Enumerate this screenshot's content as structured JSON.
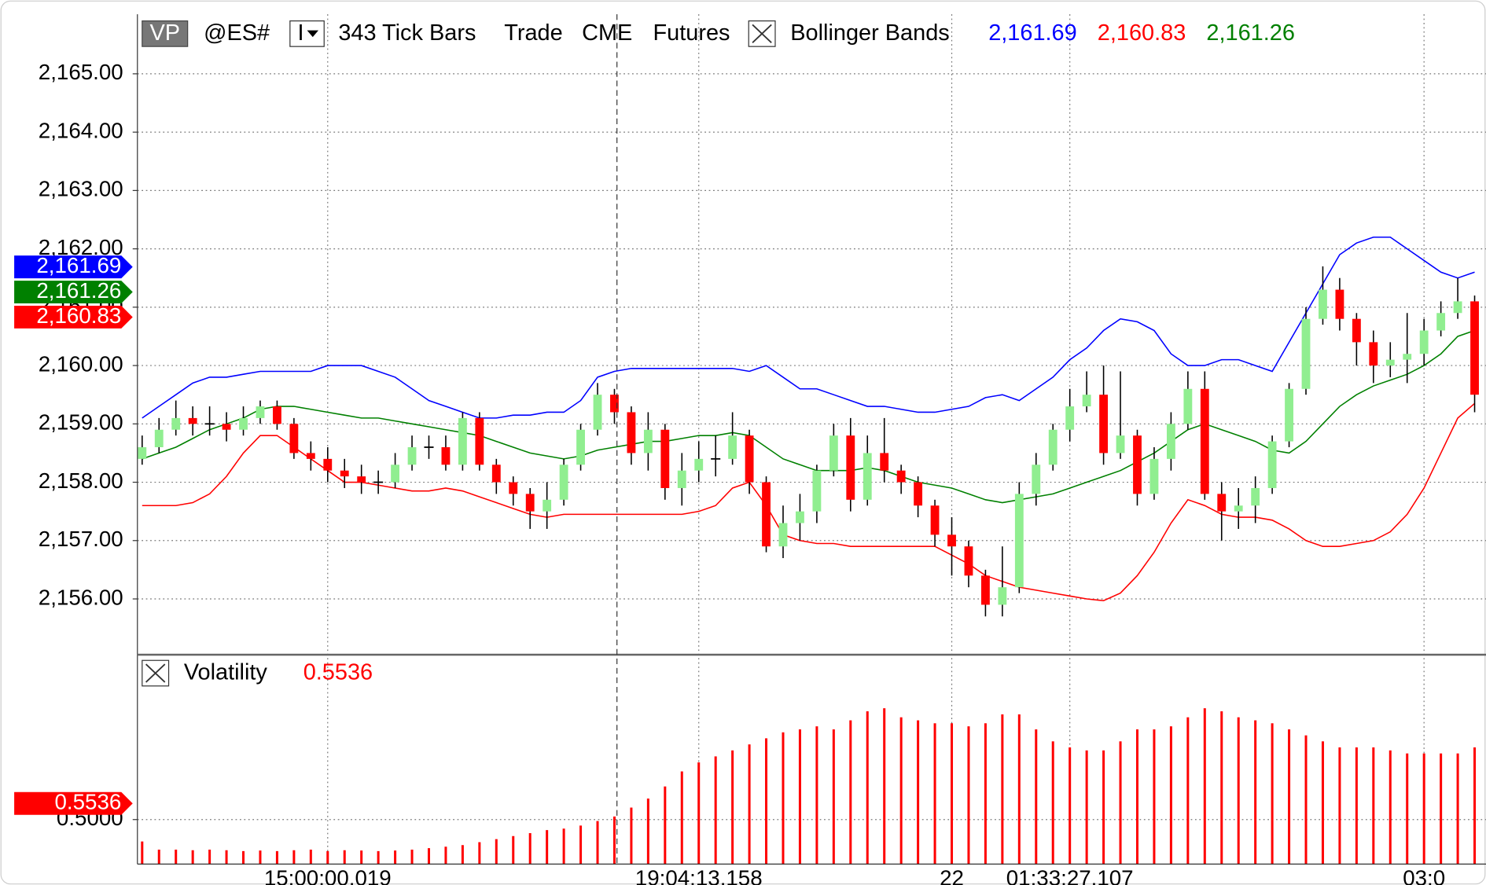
{
  "chart_data": [
    {
      "type": "candlestick",
      "chart_button": "VP",
      "symbol": "@ES#",
      "dropdown": "I",
      "interval": "343 Tick Bars",
      "session": "Trade",
      "exchange": "CME",
      "market": "Futures",
      "indicator": "Bollinger Bands",
      "categories": [
        null,
        null,
        null,
        null,
        null,
        null,
        null,
        null,
        null,
        null,
        null,
        "15:00:00.019",
        null,
        null,
        null,
        null,
        null,
        null,
        null,
        null,
        null,
        null,
        null,
        null,
        null,
        null,
        null,
        null,
        null,
        null,
        null,
        null,
        null,
        "19:04:13.158",
        null,
        null,
        null,
        null,
        null,
        null,
        null,
        null,
        null,
        null,
        null,
        null,
        null,
        null,
        "22",
        null,
        null,
        null,
        null,
        null,
        null,
        "01:33:27.107",
        null,
        null,
        null,
        null,
        null,
        null,
        null,
        null,
        null,
        null,
        null,
        null,
        null,
        null,
        null,
        null,
        null,
        null,
        null,
        null,
        "03:0",
        null,
        null,
        null
      ],
      "open": [
        2158.4,
        2158.6,
        2158.9,
        2159.1,
        2159.0,
        2159.0,
        2158.9,
        2159.1,
        2159.3,
        2159.0,
        2158.5,
        2158.4,
        2158.2,
        2158.1,
        2158.0,
        2158.0,
        2158.3,
        2158.6,
        2158.6,
        2158.3,
        2159.1,
        2158.3,
        2158.0,
        2157.8,
        2157.5,
        2157.7,
        2158.3,
        2158.9,
        2159.5,
        2159.2,
        2158.5,
        2158.9,
        2157.9,
        2158.2,
        2158.4,
        2158.4,
        2158.8,
        2158.0,
        2156.9,
        2157.3,
        2157.5,
        2158.2,
        2158.8,
        2157.7,
        2158.5,
        2158.2,
        2158.0,
        2157.6,
        2157.1,
        2156.9,
        2156.4,
        2155.9,
        2156.2,
        2157.8,
        2158.3,
        2158.9,
        2159.3,
        2159.5,
        2158.5,
        2158.8,
        2157.8,
        2158.4,
        2159.0,
        2159.6,
        2157.8,
        2157.5,
        2157.6,
        2157.9,
        2158.7,
        2159.6,
        2160.8,
        2161.3,
        2160.8,
        2160.4,
        2160.0,
        2160.1,
        2160.2,
        2160.6,
        2160.9,
        2161.1
      ],
      "high": [
        2158.8,
        2159.1,
        2159.4,
        2159.3,
        2159.3,
        2159.2,
        2159.3,
        2159.4,
        2159.4,
        2159.1,
        2158.7,
        2158.6,
        2158.4,
        2158.3,
        2158.2,
        2158.5,
        2158.8,
        2158.8,
        2158.8,
        2159.2,
        2159.2,
        2158.4,
        2158.1,
        2157.9,
        2158.0,
        2158.4,
        2159.0,
        2159.7,
        2159.6,
        2159.3,
        2159.2,
        2159.0,
        2158.5,
        2158.7,
        2158.8,
        2159.2,
        2158.9,
        2158.1,
        2157.6,
        2157.8,
        2158.3,
        2159.0,
        2159.1,
        2158.8,
        2159.1,
        2158.3,
        2158.1,
        2157.7,
        2157.4,
        2157.0,
        2156.5,
        2156.9,
        2158.0,
        2158.5,
        2159.0,
        2159.6,
        2159.9,
        2160.0,
        2159.9,
        2158.9,
        2158.6,
        2159.2,
        2159.9,
        2159.9,
        2158.0,
        2157.9,
        2158.1,
        2158.8,
        2159.7,
        2161.0,
        2161.7,
        2161.5,
        2160.9,
        2160.6,
        2160.4,
        2160.9,
        2160.8,
        2161.1,
        2161.5,
        2161.2
      ],
      "low": [
        2158.3,
        2158.5,
        2158.8,
        2158.8,
        2158.8,
        2158.7,
        2158.8,
        2159.0,
        2158.9,
        2158.4,
        2158.2,
        2158.0,
        2157.9,
        2157.8,
        2157.8,
        2157.9,
        2158.2,
        2158.4,
        2158.2,
        2158.2,
        2158.2,
        2157.8,
        2157.6,
        2157.2,
        2157.2,
        2157.6,
        2158.2,
        2158.8,
        2159.0,
        2158.3,
        2158.2,
        2157.7,
        2157.6,
        2158.0,
        2158.1,
        2158.3,
        2157.8,
        2156.8,
        2156.7,
        2157.0,
        2157.3,
        2158.1,
        2157.5,
        2157.6,
        2158.0,
        2157.8,
        2157.4,
        2156.9,
        2156.4,
        2156.2,
        2155.7,
        2155.7,
        2156.1,
        2157.6,
        2158.2,
        2158.7,
        2159.2,
        2158.3,
        2158.4,
        2157.6,
        2157.7,
        2158.2,
        2158.9,
        2157.7,
        2157.0,
        2157.2,
        2157.3,
        2157.8,
        2158.6,
        2159.5,
        2160.7,
        2160.6,
        2160.0,
        2159.7,
        2159.8,
        2159.7,
        2160.0,
        2160.5,
        2160.8,
        2159.2
      ],
      "close": [
        2158.6,
        2158.9,
        2159.1,
        2159.0,
        2159.0,
        2158.9,
        2159.1,
        2159.3,
        2159.0,
        2158.5,
        2158.4,
        2158.2,
        2158.1,
        2158.0,
        2158.0,
        2158.3,
        2158.6,
        2158.6,
        2158.3,
        2159.1,
        2158.3,
        2158.0,
        2157.8,
        2157.5,
        2157.7,
        2158.3,
        2158.9,
        2159.5,
        2159.2,
        2158.5,
        2158.9,
        2157.9,
        2158.2,
        2158.4,
        2158.4,
        2158.8,
        2158.0,
        2156.9,
        2157.3,
        2157.5,
        2158.2,
        2158.8,
        2157.7,
        2158.5,
        2158.2,
        2158.0,
        2157.6,
        2157.1,
        2156.9,
        2156.4,
        2155.9,
        2156.2,
        2157.8,
        2158.3,
        2158.9,
        2159.3,
        2159.5,
        2158.5,
        2158.8,
        2157.8,
        2158.4,
        2159.0,
        2159.6,
        2157.8,
        2157.5,
        2157.6,
        2157.9,
        2158.7,
        2159.6,
        2160.8,
        2161.3,
        2160.8,
        2160.4,
        2160.0,
        2160.1,
        2160.2,
        2160.6,
        2160.9,
        2161.1,
        2159.5
      ],
      "up_color": "#90ee90",
      "down_color": "#ff0000",
      "wick_color": "#000000",
      "series": [
        {
          "color": "#0000ff",
          "values": [
            2159.1,
            2159.3,
            2159.5,
            2159.7,
            2159.8,
            2159.8,
            2159.85,
            2159.9,
            2159.9,
            2159.9,
            2159.9,
            2160.0,
            2160.0,
            2160.0,
            2159.9,
            2159.8,
            2159.6,
            2159.4,
            2159.3,
            2159.2,
            2159.1,
            2159.1,
            2159.15,
            2159.15,
            2159.2,
            2159.2,
            2159.4,
            2159.8,
            2159.9,
            2159.95,
            2159.95,
            2159.95,
            2159.95,
            2159.95,
            2159.95,
            2159.95,
            2159.9,
            2160.0,
            2159.8,
            2159.6,
            2159.6,
            2159.5,
            2159.4,
            2159.3,
            2159.3,
            2159.25,
            2159.2,
            2159.2,
            2159.25,
            2159.3,
            2159.45,
            2159.5,
            2159.4,
            2159.6,
            2159.8,
            2160.1,
            2160.3,
            2160.6,
            2160.8,
            2160.75,
            2160.6,
            2160.2,
            2160.0,
            2160.0,
            2160.1,
            2160.1,
            2160.0,
            2159.9,
            2160.4,
            2160.9,
            2161.4,
            2161.9,
            2162.1,
            2162.2,
            2162.2,
            2162.0,
            2161.8,
            2161.6,
            2161.5,
            2161.6
          ]
        },
        {
          "color": "#008000",
          "values": [
            2158.4,
            2158.5,
            2158.6,
            2158.75,
            2158.9,
            2159.0,
            2159.1,
            2159.25,
            2159.3,
            2159.3,
            2159.25,
            2159.2,
            2159.15,
            2159.1,
            2159.1,
            2159.05,
            2159.0,
            2158.95,
            2158.9,
            2158.85,
            2158.8,
            2158.7,
            2158.6,
            2158.5,
            2158.45,
            2158.4,
            2158.45,
            2158.55,
            2158.6,
            2158.65,
            2158.7,
            2158.7,
            2158.75,
            2158.8,
            2158.8,
            2158.85,
            2158.8,
            2158.6,
            2158.4,
            2158.3,
            2158.2,
            2158.2,
            2158.2,
            2158.25,
            2158.2,
            2158.1,
            2158.0,
            2157.95,
            2157.9,
            2157.8,
            2157.7,
            2157.65,
            2157.7,
            2157.75,
            2157.8,
            2157.9,
            2158.0,
            2158.1,
            2158.2,
            2158.35,
            2158.5,
            2158.7,
            2158.9,
            2159.0,
            2158.9,
            2158.8,
            2158.7,
            2158.55,
            2158.5,
            2158.7,
            2159.0,
            2159.3,
            2159.5,
            2159.65,
            2159.75,
            2159.85,
            2160.0,
            2160.2,
            2160.5,
            2160.6
          ]
        },
        {
          "color": "#ff0000",
          "values": [
            2157.6,
            2157.6,
            2157.6,
            2157.65,
            2157.8,
            2158.1,
            2158.5,
            2158.8,
            2158.8,
            2158.6,
            2158.4,
            2158.2,
            2158.0,
            2158.0,
            2157.95,
            2157.9,
            2157.85,
            2157.85,
            2157.9,
            2157.85,
            2157.75,
            2157.65,
            2157.55,
            2157.45,
            2157.4,
            2157.45,
            2157.45,
            2157.45,
            2157.45,
            2157.45,
            2157.45,
            2157.45,
            2157.45,
            2157.5,
            2157.6,
            2157.9,
            2158.0,
            2157.6,
            2157.1,
            2157.0,
            2156.95,
            2156.95,
            2156.9,
            2156.9,
            2156.9,
            2156.9,
            2156.9,
            2156.9,
            2156.75,
            2156.6,
            2156.4,
            2156.3,
            2156.2,
            2156.15,
            2156.1,
            2156.05,
            2156.0,
            2155.97,
            2156.1,
            2156.4,
            2156.8,
            2157.3,
            2157.7,
            2157.6,
            2157.45,
            2157.4,
            2157.4,
            2157.35,
            2157.2,
            2157.0,
            2156.9,
            2156.9,
            2156.95,
            2157.0,
            2157.15,
            2157.45,
            2157.9,
            2158.5,
            2159.1,
            2159.35
          ]
        }
      ],
      "markers": [
        {
          "value": 2161.69,
          "label": "2,161.69",
          "color": "#0000ff"
        },
        {
          "value": 2160.83,
          "label": "2,160.83",
          "color": "#ff0000"
        },
        {
          "value": 2161.26,
          "label": "2,161.26",
          "color": "#008000"
        }
      ],
      "ylim": [
        2155.06,
        2166.02
      ],
      "yticks": [
        {
          "value": 2156,
          "label": "2,156.00"
        },
        {
          "value": 2157,
          "label": "2,157.00"
        },
        {
          "value": 2158,
          "label": "2,158.00"
        },
        {
          "value": 2159,
          "label": "2,159.00"
        },
        {
          "value": 2160,
          "label": "2,160.00"
        },
        {
          "value": 2161,
          "label": "2,161.00"
        },
        {
          "value": 2162,
          "label": "2,162.00"
        },
        {
          "value": 2163,
          "label": "2,163.00"
        },
        {
          "value": 2164,
          "label": "2,164.00"
        },
        {
          "value": 2165,
          "label": "2,165.00"
        }
      ],
      "grid": true
    },
    {
      "type": "bar",
      "title": "Volatility",
      "color": "#ff0000",
      "values": [
        0.427,
        0.4,
        0.4,
        0.398,
        0.4,
        0.398,
        0.395,
        0.397,
        0.395,
        0.398,
        0.4,
        0.395,
        0.398,
        0.397,
        0.395,
        0.397,
        0.4,
        0.405,
        0.41,
        0.415,
        0.425,
        0.435,
        0.445,
        0.455,
        0.465,
        0.47,
        0.48,
        0.495,
        0.51,
        0.54,
        0.57,
        0.61,
        0.66,
        0.69,
        0.71,
        0.73,
        0.75,
        0.77,
        0.79,
        0.8,
        0.81,
        0.8,
        0.83,
        0.86,
        0.87,
        0.84,
        0.83,
        0.82,
        0.82,
        0.81,
        0.82,
        0.85,
        0.85,
        0.8,
        0.76,
        0.74,
        0.73,
        0.73,
        0.76,
        0.8,
        0.8,
        0.81,
        0.84,
        0.87,
        0.86,
        0.84,
        0.83,
        0.82,
        0.8,
        0.78,
        0.76,
        0.74,
        0.74,
        0.74,
        0.73,
        0.72,
        0.72,
        0.72,
        0.72,
        0.74
      ],
      "markers": [
        {
          "value": 0.5536,
          "label": "0.5536",
          "color": "#ff0000"
        }
      ],
      "ylim": [
        0.352,
        1.045
      ],
      "yticks": [
        {
          "value": 0.5,
          "label": "0.5000"
        }
      ],
      "grid": true
    }
  ]
}
